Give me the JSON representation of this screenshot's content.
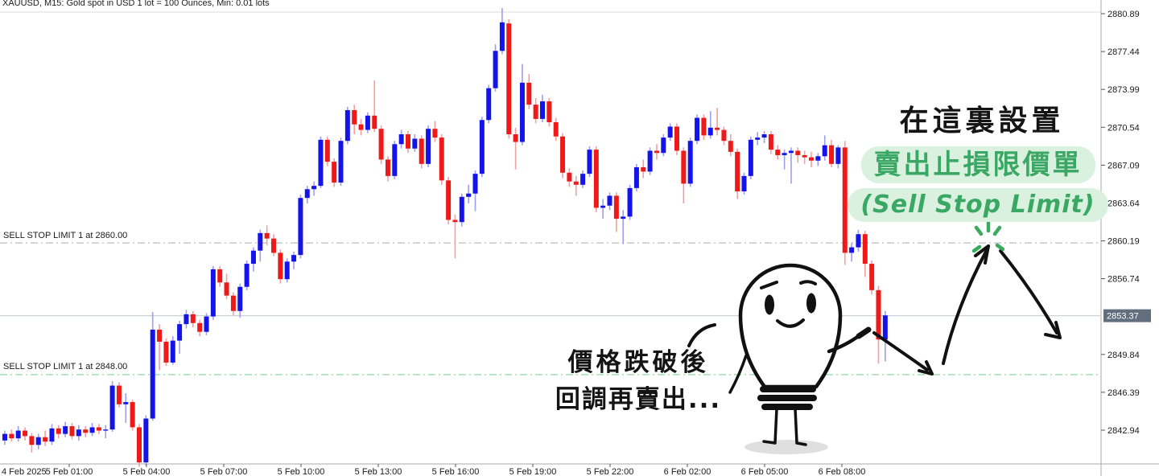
{
  "window": {
    "title": "XAUUSD, M15:  Gold spot in USD 1 lot = 100 Ounces, Min: 0.01 lots"
  },
  "annotations": {
    "setup_title": "在這裏設置",
    "setup_highlight": "賣出止損限價單",
    "setup_subtitle": "(Sell Stop Limit)",
    "note_line1": "價格跌破後",
    "note_line2": "回調再賣出...",
    "text_color": "#141414",
    "green_color": "#3aa864",
    "highlight_bg": "#d9f1de"
  },
  "order_lines": [
    {
      "label": "SELL STOP LIMIT 1 at 2860.00",
      "price": 2860.0,
      "color": "#bcbcbc"
    },
    {
      "label": "SELL STOP LIMIT 1 at 2848.00",
      "price": 2848.0,
      "color": "#7fd69e"
    }
  ],
  "price_axis": {
    "ticks": [
      2880.89,
      2877.44,
      2873.99,
      2870.54,
      2867.09,
      2863.64,
      2860.19,
      2856.74,
      2849.84,
      2846.39,
      2842.94
    ],
    "current_price": 2853.37,
    "tag_bg": "#616e7d",
    "tag_text_color": "#ffffff",
    "label_color": "#1a1a1a"
  },
  "time_axis": {
    "labels": [
      "4 Feb 2025",
      "5 Feb 01:00",
      "5 Feb 04:00",
      "5 Feb 07:00",
      "5 Feb 10:00",
      "5 Feb 13:00",
      "5 Feb 16:00",
      "5 Feb 19:00",
      "5 Feb 22:00",
      "6 Feb 02:00",
      "6 Feb 05:00",
      "6 Feb 08:00"
    ],
    "label_color": "#1a1a1a"
  },
  "chart_data": {
    "type": "candlestick",
    "symbol": "XAUUSD",
    "timeframe": "M15",
    "title": "XAUUSD M15 gold chart with two SELL STOP LIMIT pending-order lines",
    "up_color": "#1414e8",
    "down_color": "#ee1a1a",
    "up_wick_color": "#9e9ef2",
    "down_wick_color": "#f2a0a0",
    "current_price_line_color": "#ccd2d6",
    "axis_range": {
      "top": 2880.89,
      "bottom": 2842.94
    },
    "ohlc_format": [
      "open",
      "high",
      "low",
      "close"
    ],
    "candles": [
      [
        2842.0,
        2842.9,
        2841.6,
        2842.6
      ],
      [
        2842.6,
        2843.0,
        2841.9,
        2842.2
      ],
      [
        2842.2,
        2843.3,
        2841.9,
        2842.9
      ],
      [
        2842.9,
        2843.2,
        2842.0,
        2842.4
      ],
      [
        2842.4,
        2842.7,
        2840.9,
        2841.6
      ],
      [
        2841.6,
        2842.6,
        2841.2,
        2842.3
      ],
      [
        2842.3,
        2842.9,
        2841.5,
        2841.9
      ],
      [
        2841.9,
        2843.5,
        2841.6,
        2843.1
      ],
      [
        2843.1,
        2843.4,
        2842.2,
        2842.6
      ],
      [
        2842.6,
        2843.7,
        2842.3,
        2843.3
      ],
      [
        2843.3,
        2843.6,
        2842.1,
        2842.4
      ],
      [
        2842.4,
        2843.4,
        2842.0,
        2843.0
      ],
      [
        2843.0,
        2843.3,
        2842.3,
        2842.7
      ],
      [
        2842.7,
        2843.6,
        2842.4,
        2843.2
      ],
      [
        2843.2,
        2843.5,
        2842.6,
        2842.9
      ],
      [
        2842.9,
        2843.4,
        2842.2,
        2843.0
      ],
      [
        2843.0,
        2847.4,
        2842.8,
        2847.0
      ],
      [
        2847.0,
        2847.3,
        2845.0,
        2845.3
      ],
      [
        2845.3,
        2846.3,
        2843.6,
        2845.5
      ],
      [
        2845.5,
        2845.7,
        2842.9,
        2843.2
      ],
      [
        2843.2,
        2843.5,
        2839.6,
        2840.0
      ],
      [
        2840.0,
        2844.3,
        2839.7,
        2844.0
      ],
      [
        2844.0,
        2853.7,
        2843.8,
        2852.1
      ],
      [
        2852.1,
        2852.6,
        2848.4,
        2851.0
      ],
      [
        2851.0,
        2851.3,
        2848.8,
        2849.1
      ],
      [
        2849.1,
        2851.5,
        2848.9,
        2851.1
      ],
      [
        2851.1,
        2852.9,
        2849.9,
        2852.6
      ],
      [
        2852.6,
        2853.9,
        2852.2,
        2853.5
      ],
      [
        2853.5,
        2853.8,
        2852.3,
        2852.7
      ],
      [
        2852.7,
        2853.0,
        2851.5,
        2851.9
      ],
      [
        2851.9,
        2853.6,
        2851.6,
        2853.3
      ],
      [
        2853.3,
        2857.9,
        2853.0,
        2857.6
      ],
      [
        2857.6,
        2857.9,
        2856.0,
        2856.4
      ],
      [
        2856.4,
        2857.2,
        2854.9,
        2855.2
      ],
      [
        2855.2,
        2855.5,
        2853.4,
        2853.8
      ],
      [
        2853.8,
        2856.3,
        2853.2,
        2856.0
      ],
      [
        2856.0,
        2858.4,
        2855.7,
        2858.1
      ],
      [
        2858.1,
        2859.6,
        2857.4,
        2859.3
      ],
      [
        2859.3,
        2861.2,
        2858.3,
        2860.9
      ],
      [
        2860.9,
        2861.6,
        2859.8,
        2860.4
      ],
      [
        2860.4,
        2860.8,
        2858.8,
        2859.1
      ],
      [
        2859.1,
        2859.4,
        2856.3,
        2856.7
      ],
      [
        2856.7,
        2858.6,
        2856.4,
        2858.3
      ],
      [
        2858.3,
        2859.2,
        2857.6,
        2858.9
      ],
      [
        2858.9,
        2864.4,
        2858.6,
        2864.1
      ],
      [
        2864.1,
        2865.2,
        2863.6,
        2864.9
      ],
      [
        2864.9,
        2865.6,
        2864.3,
        2865.2
      ],
      [
        2865.2,
        2869.7,
        2865.0,
        2869.4
      ],
      [
        2869.4,
        2869.7,
        2867.0,
        2867.4
      ],
      [
        2867.4,
        2867.7,
        2865.1,
        2865.5
      ],
      [
        2865.5,
        2869.6,
        2865.2,
        2869.3
      ],
      [
        2869.3,
        2872.4,
        2869.0,
        2872.1
      ],
      [
        2872.1,
        2872.6,
        2869.9,
        2870.8
      ],
      [
        2870.8,
        2871.3,
        2869.8,
        2870.3
      ],
      [
        2870.3,
        2871.9,
        2870.0,
        2871.6
      ],
      [
        2871.6,
        2874.8,
        2870.1,
        2870.4
      ],
      [
        2870.4,
        2870.7,
        2867.2,
        2867.6
      ],
      [
        2867.6,
        2867.9,
        2865.6,
        2866.1
      ],
      [
        2866.1,
        2869.3,
        2865.8,
        2869.0
      ],
      [
        2869.0,
        2870.3,
        2868.6,
        2869.9
      ],
      [
        2869.9,
        2870.2,
        2868.2,
        2868.6
      ],
      [
        2868.6,
        2869.9,
        2868.3,
        2869.5
      ],
      [
        2869.5,
        2869.8,
        2866.8,
        2867.2
      ],
      [
        2867.2,
        2870.7,
        2866.9,
        2870.4
      ],
      [
        2870.4,
        2871.1,
        2869.2,
        2869.6
      ],
      [
        2869.6,
        2869.9,
        2865.3,
        2865.7
      ],
      [
        2865.7,
        2866.0,
        2861.7,
        2862.1
      ],
      [
        2862.1,
        2862.6,
        2858.6,
        2861.9
      ],
      [
        2861.9,
        2864.5,
        2861.5,
        2864.2
      ],
      [
        2864.2,
        2865.3,
        2863.6,
        2864.5
      ],
      [
        2864.5,
        2866.6,
        2862.9,
        2866.3
      ],
      [
        2866.3,
        2871.5,
        2866.0,
        2871.2
      ],
      [
        2871.2,
        2874.4,
        2870.9,
        2874.1
      ],
      [
        2874.1,
        2878.1,
        2873.8,
        2877.5
      ],
      [
        2877.5,
        2881.4,
        2877.2,
        2880.1
      ],
      [
        2880.0,
        2880.4,
        2869.5,
        2869.9
      ],
      [
        2869.9,
        2870.5,
        2866.7,
        2869.2
      ],
      [
        2869.2,
        2876.3,
        2868.9,
        2874.6
      ],
      [
        2874.6,
        2875.4,
        2872.2,
        2872.6
      ],
      [
        2872.6,
        2873.2,
        2870.9,
        2871.3
      ],
      [
        2871.3,
        2873.5,
        2871.0,
        2872.9
      ],
      [
        2872.9,
        2873.2,
        2870.6,
        2871.0
      ],
      [
        2871.0,
        2871.4,
        2869.3,
        2869.7
      ],
      [
        2869.7,
        2870.0,
        2865.9,
        2866.4
      ],
      [
        2866.4,
        2866.8,
        2865.1,
        2865.6
      ],
      [
        2865.6,
        2866.1,
        2864.3,
        2865.3
      ],
      [
        2865.3,
        2866.6,
        2865.0,
        2866.3
      ],
      [
        2866.3,
        2868.8,
        2866.0,
        2868.5
      ],
      [
        2868.5,
        2868.8,
        2862.8,
        2863.2
      ],
      [
        2863.2,
        2864.0,
        2862.2,
        2863.4
      ],
      [
        2863.4,
        2864.6,
        2863.0,
        2864.3
      ],
      [
        2864.3,
        2864.6,
        2861.0,
        2862.2
      ],
      [
        2862.2,
        2863.0,
        2859.9,
        2862.4
      ],
      [
        2862.4,
        2865.3,
        2862.1,
        2865.0
      ],
      [
        2865.0,
        2867.2,
        2864.7,
        2866.9
      ],
      [
        2866.9,
        2867.6,
        2865.9,
        2866.5
      ],
      [
        2866.5,
        2868.7,
        2866.2,
        2868.4
      ],
      [
        2868.4,
        2869.0,
        2867.6,
        2868.2
      ],
      [
        2868.2,
        2869.9,
        2867.9,
        2869.6
      ],
      [
        2869.6,
        2870.9,
        2869.3,
        2870.6
      ],
      [
        2870.6,
        2870.9,
        2868.0,
        2868.4
      ],
      [
        2868.4,
        2868.7,
        2863.6,
        2865.4
      ],
      [
        2865.4,
        2869.6,
        2865.1,
        2869.3
      ],
      [
        2869.3,
        2871.7,
        2869.0,
        2871.4
      ],
      [
        2871.4,
        2871.7,
        2869.4,
        2869.8
      ],
      [
        2869.8,
        2872.0,
        2869.5,
        2870.5
      ],
      [
        2870.5,
        2872.3,
        2869.8,
        2870.3
      ],
      [
        2870.3,
        2870.6,
        2868.9,
        2869.3
      ],
      [
        2869.3,
        2869.9,
        2867.9,
        2868.3
      ],
      [
        2868.3,
        2868.6,
        2864.0,
        2864.7
      ],
      [
        2864.7,
        2866.4,
        2864.4,
        2866.1
      ],
      [
        2866.1,
        2869.7,
        2865.8,
        2869.4
      ],
      [
        2869.4,
        2870.1,
        2868.9,
        2869.6
      ],
      [
        2869.6,
        2870.2,
        2869.1,
        2869.9
      ],
      [
        2869.9,
        2870.2,
        2868.1,
        2868.5
      ],
      [
        2868.5,
        2868.9,
        2867.6,
        2868.0
      ],
      [
        2868.0,
        2868.5,
        2866.7,
        2868.2
      ],
      [
        2868.2,
        2868.7,
        2865.4,
        2868.4
      ],
      [
        2868.4,
        2868.7,
        2867.3,
        2868.0
      ],
      [
        2868.0,
        2868.4,
        2867.2,
        2867.8
      ],
      [
        2867.8,
        2868.3,
        2866.9,
        2867.5
      ],
      [
        2867.5,
        2868.2,
        2867.0,
        2867.9
      ],
      [
        2867.9,
        2869.8,
        2867.5,
        2868.9
      ],
      [
        2868.9,
        2869.4,
        2866.9,
        2867.2
      ],
      [
        2867.2,
        2868.9,
        2866.8,
        2868.7
      ],
      [
        2868.7,
        2869.3,
        2858.0,
        2859.1
      ],
      [
        2859.1,
        2860.0,
        2858.3,
        2859.6
      ],
      [
        2859.6,
        2861.2,
        2859.2,
        2860.8
      ],
      [
        2860.8,
        2861.1,
        2856.9,
        2858.1
      ],
      [
        2858.1,
        2858.4,
        2855.3,
        2855.7
      ],
      [
        2855.7,
        2856.1,
        2849.0,
        2851.2
      ],
      [
        2851.2,
        2853.8,
        2849.2,
        2853.4
      ]
    ]
  }
}
